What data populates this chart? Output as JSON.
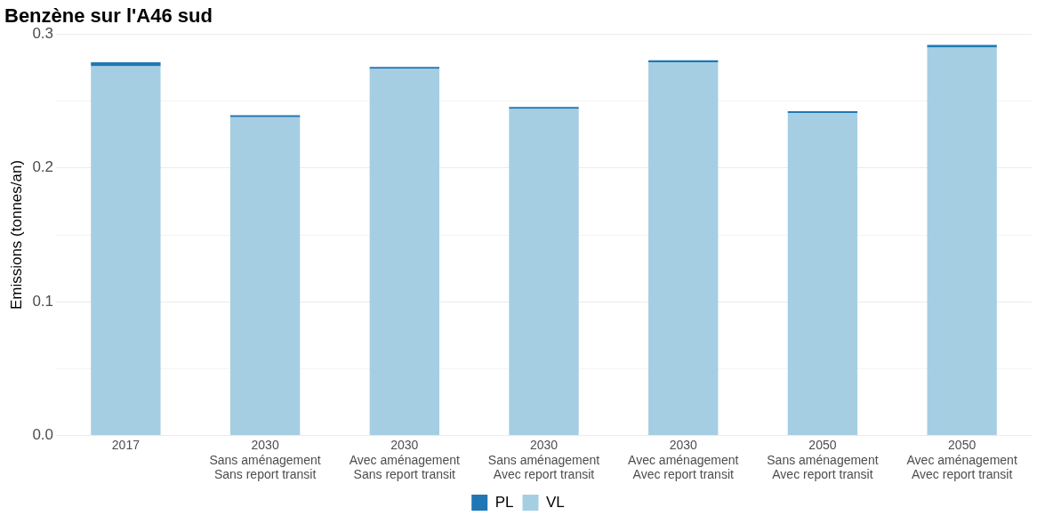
{
  "chart_data": {
    "type": "bar",
    "title": "Benzène sur l'A46 sud",
    "ylabel": "Emissions (tonnes/an)",
    "categories": [
      "2017",
      "2030\nSans aménagement\nSans report transit",
      "2030\nAvec aménagement\nSans report transit",
      "2030\nSans aménagement\nAvec report transit",
      "2030\nAvec aménagement\nAvec report transit",
      "2050\nSans aménagement\nAvec report transit",
      "2050\nAvec aménagement\nAvec report transit"
    ],
    "stacked": true,
    "series": [
      {
        "name": "VL",
        "color": "#a6cee3",
        "values": [
          0.276,
          0.238,
          0.274,
          0.244,
          0.279,
          0.241,
          0.29
        ]
      },
      {
        "name": "PL",
        "color": "#1f78b4",
        "values": [
          0.003,
          0.0015,
          0.0015,
          0.0015,
          0.0015,
          0.0015,
          0.002
        ]
      }
    ],
    "ylim": [
      0,
      0.3
    ],
    "yticks": [
      {
        "value": 0,
        "label": "0.0"
      },
      {
        "value": 0.05,
        "label": null
      },
      {
        "value": 0.1,
        "label": "0.1"
      },
      {
        "value": 0.15,
        "label": null
      },
      {
        "value": 0.2,
        "label": "0.2"
      },
      {
        "value": 0.25,
        "label": null
      },
      {
        "value": 0.3,
        "label": "0.3"
      }
    ],
    "grid": "y",
    "legend": "bottom"
  }
}
